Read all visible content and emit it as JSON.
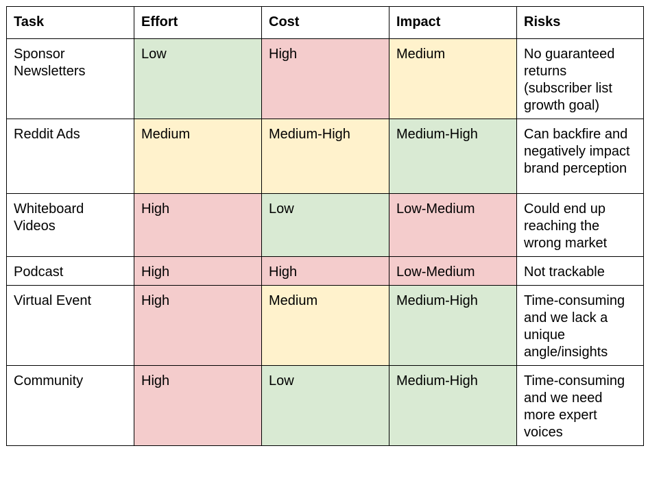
{
  "colors": {
    "low_good": "#d9ead3",
    "high_bad": "#f4cccc",
    "medium": "#fff2cc",
    "border": "#000000"
  },
  "headers": {
    "task": "Task",
    "effort": "Effort",
    "cost": "Cost",
    "impact": "Impact",
    "risks": "Risks"
  },
  "rows": [
    {
      "task": "Sponsor Newsletters",
      "effort": {
        "value": "Low",
        "level": "green"
      },
      "cost": {
        "value": "High",
        "level": "red"
      },
      "impact": {
        "value": "Medium",
        "level": "yellow"
      },
      "risks": "No guaranteed returns (subscriber list growth goal)"
    },
    {
      "task": "Reddit Ads",
      "effort": {
        "value": "Medium",
        "level": "yellow"
      },
      "cost": {
        "value": "Medium-High",
        "level": "yellow"
      },
      "impact": {
        "value": "Medium-High",
        "level": "green"
      },
      "risks": "Can backfire and negatively impact brand perception"
    },
    {
      "task": "Whiteboard Videos",
      "effort": {
        "value": "High",
        "level": "red"
      },
      "cost": {
        "value": "Low",
        "level": "green"
      },
      "impact": {
        "value": "Low-Medium",
        "level": "red"
      },
      "risks": "Could end up reaching the wrong market"
    },
    {
      "task": "Podcast",
      "effort": {
        "value": "High",
        "level": "red"
      },
      "cost": {
        "value": "High",
        "level": "red"
      },
      "impact": {
        "value": "Low-Medium",
        "level": "red"
      },
      "risks": "Not trackable"
    },
    {
      "task": "Virtual Event",
      "effort": {
        "value": "High",
        "level": "red"
      },
      "cost": {
        "value": "Medium",
        "level": "yellow"
      },
      "impact": {
        "value": "Medium-High",
        "level": "green"
      },
      "risks": "Time-consuming and we lack a unique angle/insights"
    },
    {
      "task": "Community",
      "effort": {
        "value": "High",
        "level": "red"
      },
      "cost": {
        "value": "Low",
        "level": "green"
      },
      "impact": {
        "value": "Medium-High",
        "level": "green"
      },
      "risks": "Time-consuming and we need more expert voices"
    }
  ]
}
